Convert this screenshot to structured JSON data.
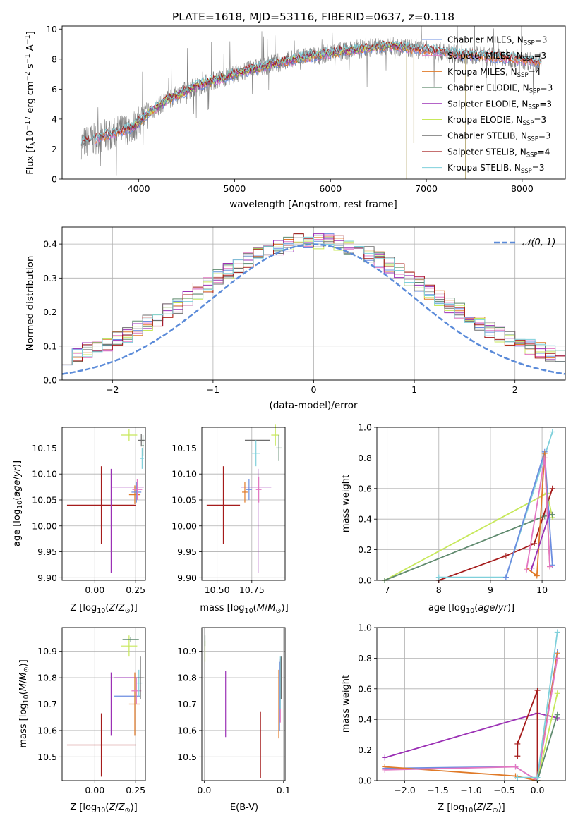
{
  "figure_title": "PLATE=1618, MJD=53116, FIBERID=0637, z=0.118",
  "colors": {
    "chabrier_miles": "#6b8de0",
    "salpeter_miles": "#e377c2",
    "kroupa_miles": "#e07a28",
    "chabrier_elodie": "#5f8a6e",
    "salpeter_elodie": "#9b30b5",
    "kroupa_elodie": "#c7e85a",
    "chabrier_stelib": "#6e6e6e",
    "salpeter_stelib": "#a51b1b",
    "kroupa_stelib": "#7fd0db",
    "gauss": "#5b8bd9",
    "grid": "#b0b0b0"
  },
  "chart_data": [
    {
      "id": "spectrum",
      "type": "line",
      "title": "PLATE=1618, MJD=53116, FIBERID=0637, z=0.118",
      "xlabel": "wavelength [Angstrom, rest frame]",
      "ylabel": "Flux [fλ10⁻¹⁷ erg cm⁻² s⁻¹ A⁻¹]",
      "xlim": [
        3200,
        8450
      ],
      "ylim": [
        0,
        10.2
      ],
      "xticks": [
        "4000",
        "5000",
        "6000",
        "7000",
        "8000"
      ],
      "yticks": [
        "0",
        "2",
        "4",
        "6",
        "8",
        "10"
      ],
      "grid": false,
      "legend": "top-right",
      "legend_entries": [
        "Chabrier MILES, NSSP=3",
        "Salpeter MILES, NSSP=3",
        "Kroupa MILES, NSSP=4",
        "Chabrier ELODIE, NSSP=3",
        "Salpeter ELODIE, NSSP=3",
        "Kroupa ELODIE, NSSP=3",
        "Chabrier STELIB, NSSP=3",
        "Salpeter STELIB, NSSP=4",
        "Kroupa STELIB, NSSP=3"
      ],
      "continuum": {
        "x": [
          3400,
          3600,
          3800,
          3950,
          4100,
          4300,
          4600,
          5000,
          5400,
          5800,
          6200,
          6600,
          7000,
          7400,
          7800,
          8200
        ],
        "y": [
          2.4,
          2.8,
          3.2,
          3.5,
          4.4,
          5.3,
          6.2,
          7.0,
          7.7,
          8.2,
          8.6,
          8.9,
          8.6,
          8.3,
          8.1,
          7.8
        ]
      }
    },
    {
      "id": "residuals",
      "type": "line",
      "xlabel": "(data-model)/error",
      "ylabel": "Normed distribution",
      "xlim": [
        -2.5,
        2.5
      ],
      "ylim": [
        0,
        0.45
      ],
      "xticks": [
        "−2",
        "−1",
        "0",
        "1",
        "2"
      ],
      "yticks": [
        "0.0",
        "0.1",
        "0.2",
        "0.3",
        "0.4"
      ],
      "grid": true,
      "legend": "top-right",
      "legend_entries": [
        "𝒩(0, 1)"
      ],
      "series_note": "step histograms of normalized residuals for the nine SSP fits, bin width 0.1"
    },
    {
      "id": "age_vs_Z",
      "type": "scatter",
      "xlabel": "Z [log₁₀(Z/Z⊙)]",
      "ylabel": "age  [log₁₀(age/yr)]",
      "xlim": [
        -0.2,
        0.31
      ],
      "ylim": [
        9.895,
        10.19
      ],
      "xticks": [
        "0.00",
        "0.25"
      ],
      "yticks": [
        "9.90",
        "9.95",
        "10.00",
        "10.05",
        "10.10",
        "10.15"
      ],
      "grid": true,
      "points": [
        {
          "fit": "salpeter_stelib",
          "x": 0.04,
          "xerr": 0.21,
          "y": 10.04,
          "yerr": 0.075
        },
        {
          "fit": "salpeter_elodie",
          "x": 0.2,
          "xerr": 0.1,
          "y": 10.075,
          "yerr": 0.0
        },
        {
          "fit": "salpeter_elodie",
          "x": 0.1,
          "xerr": 0.0,
          "y": 10.01,
          "yerr": 0.1
        },
        {
          "fit": "kroupa_miles",
          "x": 0.245,
          "xerr": 0.035,
          "y": 10.06,
          "yerr": 0.018
        },
        {
          "fit": "chabrier_miles",
          "x": 0.255,
          "xerr": 0.03,
          "y": 10.065,
          "yerr": 0.02
        },
        {
          "fit": "salpeter_miles",
          "x": 0.26,
          "xerr": 0.03,
          "y": 10.07,
          "yerr": 0.02
        },
        {
          "fit": "kroupa_elodie",
          "x": 0.21,
          "xerr": 0.05,
          "y": 10.175,
          "yerr": 0.012
        },
        {
          "fit": "chabrier_stelib",
          "x": 0.285,
          "xerr": 0.02,
          "y": 10.165,
          "yerr": 0.012
        },
        {
          "fit": "kroupa_stelib",
          "x": 0.29,
          "xerr": 0.01,
          "y": 10.13,
          "yerr": 0.02
        },
        {
          "fit": "chabrier_elodie",
          "x": 0.295,
          "xerr": 0.005,
          "y": 10.155,
          "yerr": 0.02
        }
      ]
    },
    {
      "id": "age_vs_mass",
      "type": "scatter",
      "xlabel": "mass [log₁₀(M/M⊙)]",
      "ylabel": "",
      "xlim": [
        10.39,
        10.99
      ],
      "ylim": [
        9.895,
        10.19
      ],
      "xticks": [
        "10.50",
        "10.75"
      ],
      "yticks": [
        "9.90",
        "9.95",
        "10.00",
        "10.05",
        "10.10",
        "10.15"
      ],
      "grid": true,
      "points": [
        {
          "fit": "salpeter_stelib",
          "x": 10.545,
          "xerr": 0.12,
          "y": 10.04,
          "yerr": 0.075
        },
        {
          "fit": "salpeter_elodie",
          "x": 10.795,
          "xerr": 0.0,
          "y": 10.01,
          "yerr": 0.1
        },
        {
          "fit": "salpeter_elodie",
          "x": 10.78,
          "xerr": 0.11,
          "y": 10.075,
          "yerr": 0.0
        },
        {
          "fit": "kroupa_miles",
          "x": 10.7,
          "xerr": 0.02,
          "y": 10.065,
          "yerr": 0.02
        },
        {
          "fit": "chabrier_miles",
          "x": 10.73,
          "xerr": 0.02,
          "y": 10.07,
          "yerr": 0.02
        },
        {
          "fit": "salpeter_miles",
          "x": 10.8,
          "xerr": 0.02,
          "y": 10.07,
          "yerr": 0.025
        },
        {
          "fit": "chabrier_stelib",
          "x": 10.79,
          "xerr": 0.09,
          "y": 10.165,
          "yerr": 0.0
        },
        {
          "fit": "kroupa_stelib",
          "x": 10.78,
          "xerr": 0.03,
          "y": 10.14,
          "yerr": 0.025
        },
        {
          "fit": "kroupa_elodie",
          "x": 10.92,
          "xerr": 0.03,
          "y": 10.175,
          "yerr": 0.02
        },
        {
          "fit": "chabrier_elodie",
          "x": 10.945,
          "xerr": 0.02,
          "y": 10.15,
          "yerr": 0.025
        }
      ]
    },
    {
      "id": "mass_weight_vs_age",
      "type": "line",
      "xlabel": "age  [log₁₀(age/yr)]",
      "ylabel": "mass weight",
      "xlim": [
        6.8,
        10.45
      ],
      "ylim": [
        0,
        1.0
      ],
      "xticks": [
        "7",
        "8",
        "9",
        "10"
      ],
      "yticks": [
        "0.0",
        "0.2",
        "0.4",
        "0.6",
        "0.8",
        "1.0"
      ],
      "grid": true,
      "series": [
        {
          "fit": "kroupa_elodie",
          "x": [
            6.95,
            10.1,
            10.2
          ],
          "y": [
            0.0,
            0.57,
            0.41
          ]
        },
        {
          "fit": "chabrier_elodie",
          "x": [
            6.95,
            10.05,
            10.2
          ],
          "y": [
            0.0,
            0.42,
            0.43
          ]
        },
        {
          "fit": "salpeter_stelib",
          "x": [
            8.0,
            9.3,
            9.85,
            10.2
          ],
          "y": [
            0.0,
            0.16,
            0.24,
            0.6
          ]
        },
        {
          "fit": "kroupa_stelib",
          "x": [
            8.0,
            9.3,
            10.2
          ],
          "y": [
            0.02,
            0.02,
            0.97
          ]
        },
        {
          "fit": "chabrier_miles",
          "x": [
            9.3,
            10.05,
            10.2
          ],
          "y": [
            0.02,
            0.84,
            0.1
          ]
        },
        {
          "fit": "kroupa_miles",
          "x": [
            9.7,
            9.9,
            10.05,
            10.15
          ],
          "y": [
            0.08,
            0.03,
            0.83,
            0.09
          ]
        },
        {
          "fit": "salpeter_miles",
          "x": [
            9.7,
            10.05,
            10.15
          ],
          "y": [
            0.07,
            0.8,
            0.09
          ]
        },
        {
          "fit": "salpeter_elodie",
          "x": [
            9.8,
            10.15
          ],
          "y": [
            0.08,
            0.44
          ]
        }
      ]
    },
    {
      "id": "mass_vs_Z",
      "type": "scatter",
      "xlabel": "Z [log₁₀(Z/Z⊙)]",
      "ylabel": "mass [log₁₀(M/M⊙)]",
      "xlim": [
        -0.2,
        0.31
      ],
      "ylim": [
        10.41,
        10.99
      ],
      "xticks": [
        "0.00",
        "0.25"
      ],
      "yticks": [
        "10.5",
        "10.6",
        "10.7",
        "10.8",
        "10.9"
      ],
      "grid": true,
      "points": [
        {
          "fit": "salpeter_stelib",
          "x": 0.04,
          "xerr": 0.21,
          "y": 10.545,
          "yerr": 0.12
        },
        {
          "fit": "salpeter_elodie",
          "x": 0.1,
          "xerr": 0.0,
          "y": 10.7,
          "yerr": 0.12
        },
        {
          "fit": "salpeter_elodie",
          "x": 0.2,
          "xerr": 0.08,
          "y": 10.8,
          "yerr": 0.0
        },
        {
          "fit": "chabrier_miles",
          "x": 0.2,
          "xerr": 0.08,
          "y": 10.73,
          "yerr": 0.0
        },
        {
          "fit": "kroupa_miles",
          "x": 0.245,
          "xerr": 0.035,
          "y": 10.7,
          "yerr": 0.12
        },
        {
          "fit": "salpeter_miles",
          "x": 0.255,
          "xerr": 0.03,
          "y": 10.75,
          "yerr": 0.05
        },
        {
          "fit": "kroupa_stelib",
          "x": 0.27,
          "xerr": 0.02,
          "y": 10.78,
          "yerr": 0.05
        },
        {
          "fit": "chabrier_stelib",
          "x": 0.28,
          "xerr": 0.02,
          "y": 10.8,
          "yerr": 0.08
        },
        {
          "fit": "kroupa_elodie",
          "x": 0.21,
          "xerr": 0.05,
          "y": 10.92,
          "yerr": 0.04
        },
        {
          "fit": "chabrier_elodie",
          "x": 0.22,
          "xerr": 0.05,
          "y": 10.945,
          "yerr": 0.01
        }
      ]
    },
    {
      "id": "mass_vs_ebv",
      "type": "scatter",
      "xlabel": "E(B-V)",
      "ylabel": "",
      "xlim": [
        -0.003,
        0.102
      ],
      "ylim": [
        10.41,
        10.99
      ],
      "xticks": [
        "0.0",
        "0.1"
      ],
      "yticks": [
        "10.5",
        "10.6",
        "10.7",
        "10.8",
        "10.9"
      ],
      "grid": true,
      "points": [
        {
          "fit": "kroupa_elodie",
          "x": 0.001,
          "xerr": 0.0,
          "y": 10.9,
          "yerr": 0.04
        },
        {
          "fit": "chabrier_elodie",
          "x": 0.001,
          "xerr": 0.0,
          "y": 10.94,
          "yerr": 0.02
        },
        {
          "fit": "salpeter_elodie",
          "x": 0.027,
          "xerr": 0.0,
          "y": 10.7,
          "yerr": 0.125
        },
        {
          "fit": "salpeter_stelib",
          "x": 0.071,
          "xerr": 0.0,
          "y": 10.545,
          "yerr": 0.125
        },
        {
          "fit": "kroupa_miles",
          "x": 0.094,
          "xerr": 0.0,
          "y": 10.7,
          "yerr": 0.13
        },
        {
          "fit": "chabrier_miles",
          "x": 0.095,
          "xerr": 0.0,
          "y": 10.73,
          "yerr": 0.13
        },
        {
          "fit": "salpeter_miles",
          "x": 0.096,
          "xerr": 0.0,
          "y": 10.75,
          "yerr": 0.12
        },
        {
          "fit": "kroupa_stelib",
          "x": 0.096,
          "xerr": 0.0,
          "y": 10.78,
          "yerr": 0.1
        },
        {
          "fit": "chabrier_stelib",
          "x": 0.097,
          "xerr": 0.0,
          "y": 10.8,
          "yerr": 0.08
        }
      ]
    },
    {
      "id": "mass_weight_vs_Z",
      "type": "line",
      "xlabel": "Z [log₁₀(Z/Z⊙)]",
      "ylabel": "mass weight",
      "xlim": [
        -2.42,
        0.42
      ],
      "ylim": [
        0,
        1.0
      ],
      "xticks": [
        "−2.0",
        "−1.5",
        "−1.0",
        "−0.5",
        "0.0"
      ],
      "yticks": [
        "0.0",
        "0.2",
        "0.4",
        "0.6",
        "0.8",
        "1.0"
      ],
      "grid": true,
      "series": [
        {
          "fit": "salpeter_elodie",
          "x": [
            -2.3,
            0.0,
            0.3
          ],
          "y": [
            0.15,
            0.44,
            0.41
          ]
        },
        {
          "fit": "chabrier_miles",
          "x": [
            -2.3,
            -0.33,
            0.0,
            0.3
          ],
          "y": [
            0.08,
            0.09,
            0.0,
            0.84
          ]
        },
        {
          "fit": "kroupa_miles",
          "x": [
            -2.3,
            -0.33,
            0.0,
            0.3
          ],
          "y": [
            0.09,
            0.03,
            0.0,
            0.83
          ]
        },
        {
          "fit": "salpeter_miles",
          "x": [
            -2.3,
            -0.33,
            0.0,
            0.3
          ],
          "y": [
            0.07,
            0.09,
            0.0,
            0.8
          ]
        },
        {
          "fit": "salpeter_stelib",
          "x": [
            -0.3,
            -0.3,
            0.0,
            0.0
          ],
          "y": [
            0.16,
            0.24,
            0.59,
            0.0
          ]
        },
        {
          "fit": "kroupa_elodie",
          "x": [
            0.0,
            0.3
          ],
          "y": [
            0.0,
            0.57
          ]
        },
        {
          "fit": "chabrier_elodie",
          "x": [
            0.0,
            0.3
          ],
          "y": [
            0.0,
            0.43
          ]
        },
        {
          "fit": "kroupa_stelib",
          "x": [
            -0.3,
            0.0,
            0.3
          ],
          "y": [
            0.02,
            0.02,
            0.97
          ]
        }
      ]
    }
  ]
}
